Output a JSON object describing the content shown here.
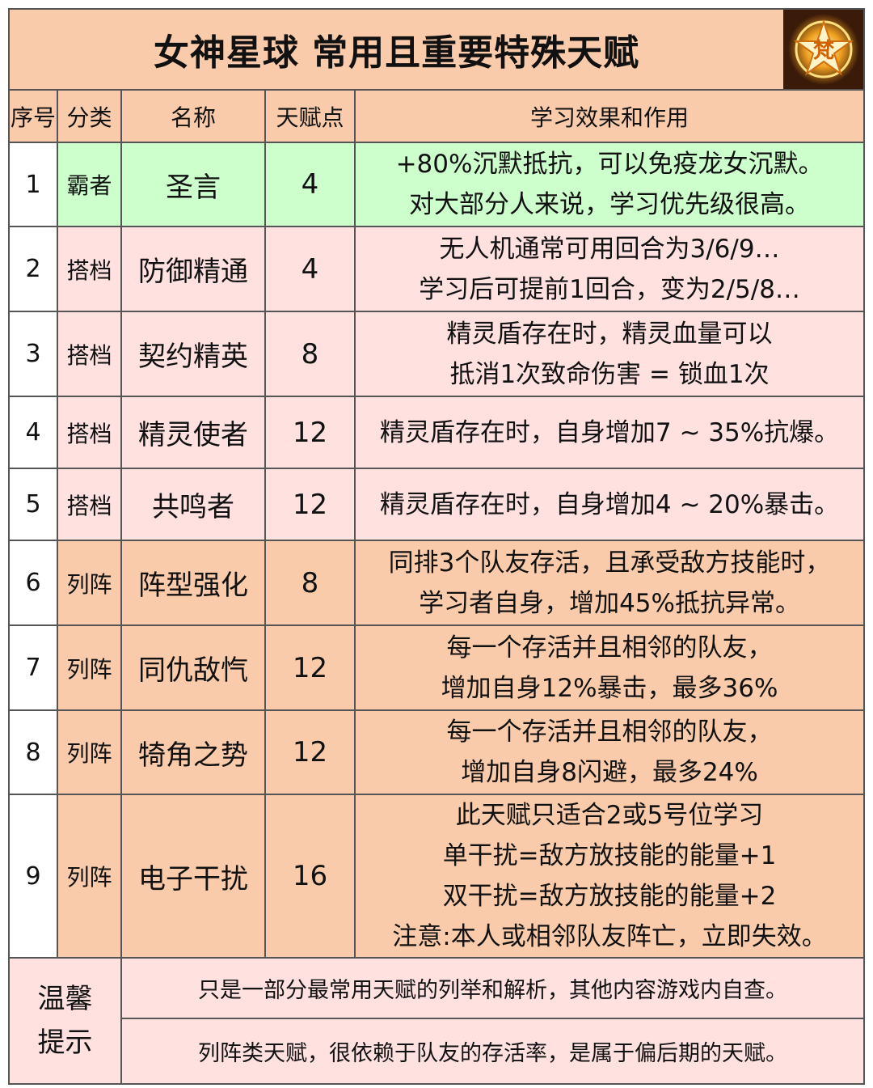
{
  "title": "女神星球  常用且重要特殊天赋",
  "logo_text": "梵",
  "headers": [
    "序号",
    "分类",
    "名称",
    "天赋点",
    "学习效果和作用"
  ],
  "rows": [
    {
      "num": "1",
      "cat": "霸者",
      "name": "圣言",
      "pts": "4",
      "effect": [
        "+80%沉默抵抗，可以免疫龙女沉默。",
        "对大部分人来说，学习优先级很高。"
      ],
      "color": "#CCFFCC"
    },
    {
      "num": "2",
      "cat": "搭档",
      "name": "防御精通",
      "pts": "4",
      "effect": [
        "无人机通常可用回合为3/6/9…",
        "学习后可提前1回合，变为2/5/8…"
      ],
      "color": "#FFE1DF"
    },
    {
      "num": "3",
      "cat": "搭档",
      "name": "契约精英",
      "pts": "8",
      "effect": [
        "精灵盾存在时，精灵血量可以",
        "抵消1次致命伤害 = 锁血1次"
      ],
      "color": "#FFE1DF"
    },
    {
      "num": "4",
      "cat": "搭档",
      "name": "精灵使者",
      "pts": "12",
      "effect": [
        "精灵盾存在时，自身增加7 ~ 35%抗爆。"
      ],
      "color": "#FFE1DF"
    },
    {
      "num": "5",
      "cat": "搭档",
      "name": "共鸣者",
      "pts": "12",
      "effect": [
        "精灵盾存在时，自身增加4 ~ 20%暴击。"
      ],
      "color": "#FFE1DF"
    },
    {
      "num": "6",
      "cat": "列阵",
      "name": "阵型强化",
      "pts": "8",
      "effect": [
        "同排3个队友存活，且承受敌方技能时，",
        "学习者自身，增加45%抵抗异常。"
      ],
      "color": "#FACBAA"
    },
    {
      "num": "7",
      "cat": "列阵",
      "name": "同仇敌忾",
      "pts": "12",
      "effect": [
        "每一个存活并且相邻的队友，",
        "增加自身12%暴击，最多36%"
      ],
      "color": "#FACBAA"
    },
    {
      "num": "8",
      "cat": "列阵",
      "name": "犄角之势",
      "pts": "12",
      "effect": [
        "每一个存活并且相邻的队友，",
        "增加自身8闪避，最多24%"
      ],
      "color": "#FACBAA"
    },
    {
      "num": "9",
      "cat": "列阵",
      "name": "电子干扰",
      "pts": "16",
      "effect": [
        "此天赋只适合2或5号位学习",
        "单干扰=敌方放技能的能量+1",
        "双干扰=敌方放技能的能量+2",
        "注意:本人或相邻队友阵亡，立即失效。"
      ],
      "color": "#FACBAA"
    }
  ],
  "tips": {
    "label": [
      "温馨",
      "提示"
    ],
    "lines": [
      "只是一部分最常用天赋的列举和解析，其他内容游戏内自查。",
      "列阵类天赋，很依赖于队友的存活率，是属于偏后期的天赋。"
    ]
  }
}
